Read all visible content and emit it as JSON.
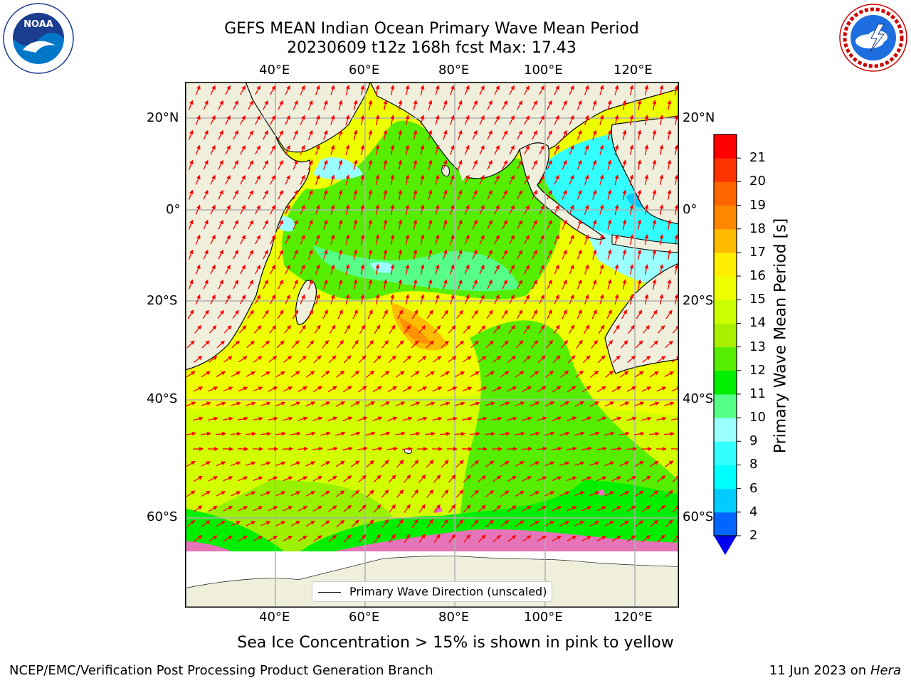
{
  "title": {
    "line1": "GEFS MEAN Indian Ocean Primary Wave Mean Period",
    "line2": "20230609 t12z 168h fcst   Max: 17.43"
  },
  "map": {
    "lon_ticks": [
      "40°E",
      "60°E",
      "80°E",
      "100°E",
      "120°E"
    ],
    "lat_ticks": [
      "20°N",
      "0°",
      "20°S",
      "40°S",
      "60°S"
    ],
    "legend_label": "Primary Wave Direction (unscaled)",
    "arrow_color": "#ff0000",
    "land_color": "#efefdc"
  },
  "colorbar": {
    "title": "Primary Wave Mean Period [s]",
    "ticks": [
      "2",
      "4",
      "6",
      "8",
      "9",
      "10",
      "11",
      "12",
      "13",
      "14",
      "15",
      "16",
      "17",
      "18",
      "19",
      "20",
      "21"
    ],
    "colors": [
      "#0066ff",
      "#00ccff",
      "#00ffff",
      "#33ffff",
      "#99ffff",
      "#55ff88",
      "#00ee00",
      "#55ee00",
      "#aaee00",
      "#ccff00",
      "#eeff00",
      "#ffee00",
      "#ffbb00",
      "#ff8800",
      "#ff6600",
      "#ff3300",
      "#ff0000"
    ],
    "under_color": "#0000ee"
  },
  "logos": {
    "noaa": "NOAA",
    "nws_text": "NATIONAL WEATHER SERVICE"
  },
  "caption": "Sea Ice Concentration > 15% is shown in pink to yellow",
  "footer": {
    "left": "NCEP/EMC/Verification Post Processing Product Generation Branch",
    "date": "11 Jun 2023",
    "on": "on",
    "host": "Hera"
  }
}
